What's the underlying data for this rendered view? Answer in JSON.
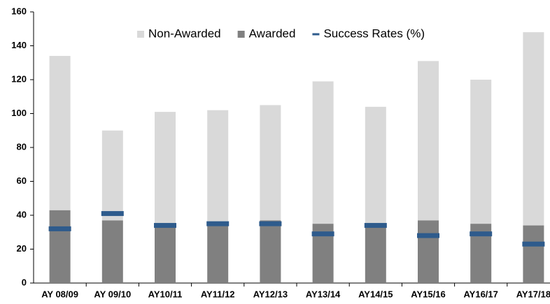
{
  "chart_data": {
    "type": "stacked_bar",
    "categories": [
      "AY 08/09",
      "AY 09/10",
      "AY10/11",
      "AY11/12",
      "AY12/13",
      "AY13/14",
      "AY14/15",
      "AY15/16",
      "AY16/17",
      "AY17/18"
    ],
    "series": [
      {
        "name": "Awarded",
        "color": "#808080",
        "values": [
          43,
          37,
          34,
          34,
          37,
          35,
          34,
          37,
          35,
          34
        ]
      },
      {
        "name": "Non-Awarded",
        "color": "#d9d9d9",
        "values": [
          91,
          53,
          67,
          68,
          68,
          84,
          70,
          94,
          85,
          114
        ]
      },
      {
        "name": "Success Rates (%)",
        "color": "#2e5b8c",
        "kind": "marker",
        "values": [
          32,
          41,
          34,
          35,
          35,
          29,
          34,
          28,
          29,
          23
        ]
      }
    ],
    "legend_order": [
      1,
      0,
      2
    ],
    "legend": "top",
    "ylim": [
      0,
      160
    ],
    "yticks": [
      0,
      20,
      40,
      60,
      80,
      100,
      120,
      140,
      160
    ]
  }
}
